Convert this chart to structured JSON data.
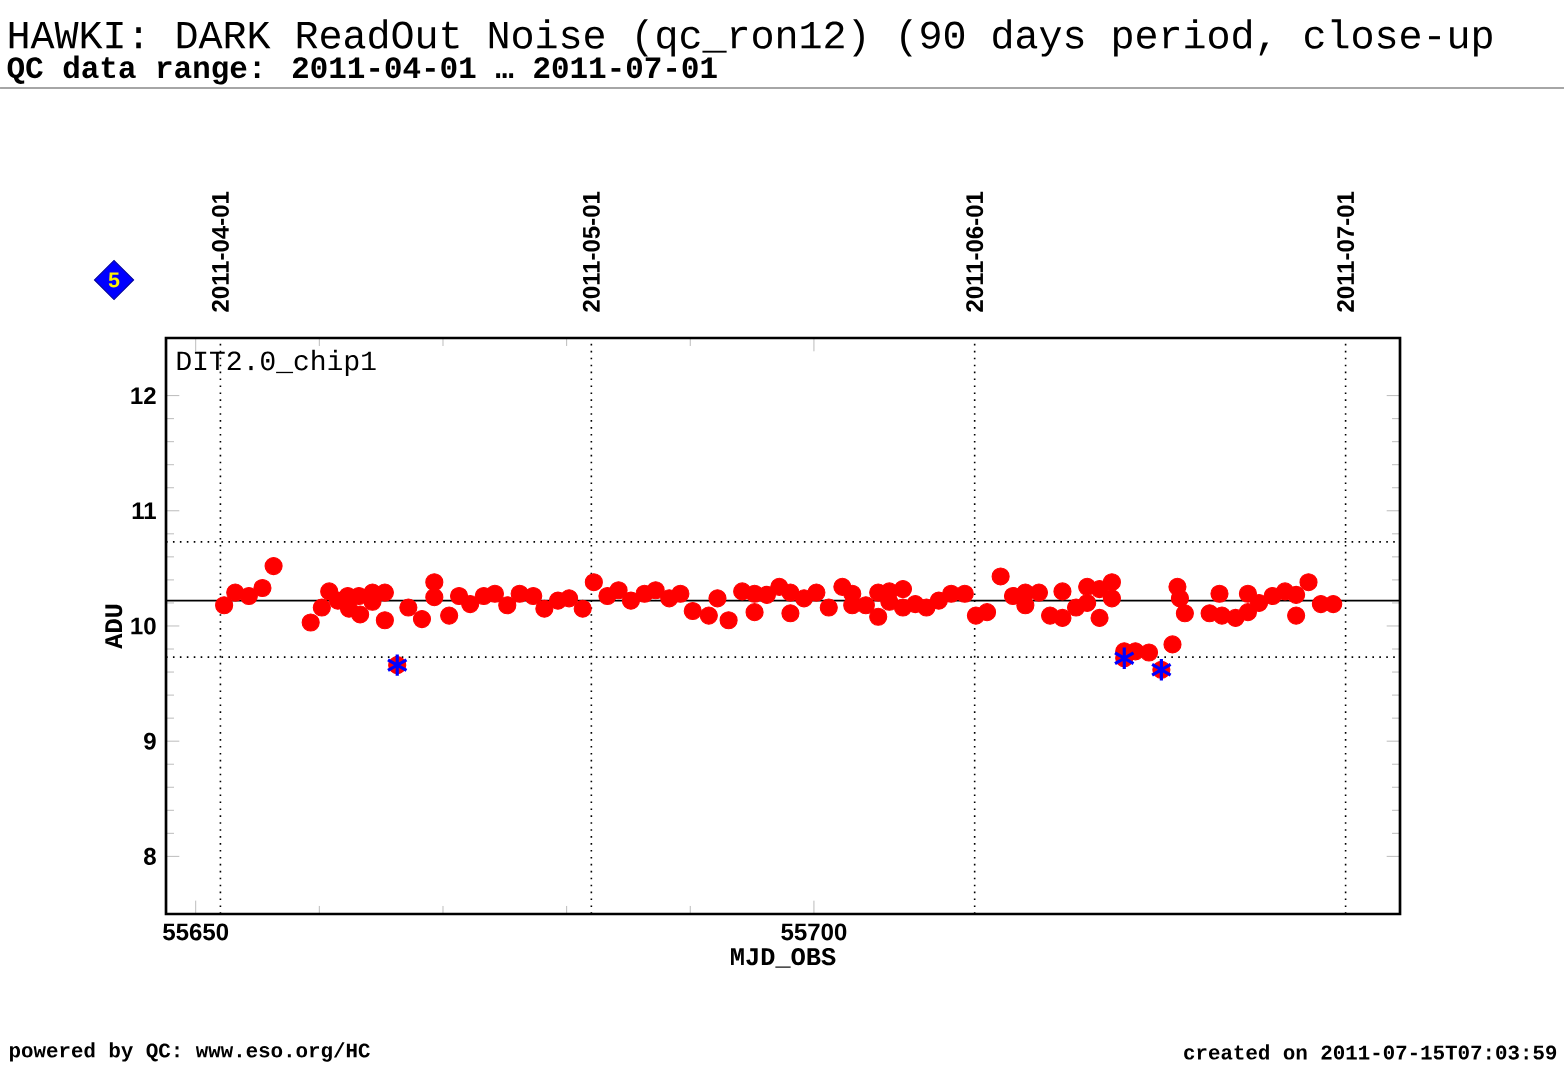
{
  "chart_data": {
    "type": "scatter",
    "title": "HAWKI: DARK ReadOut Noise (qc_ron12) (90 days period, close-up",
    "subtitle": "QC data range: 2011-04-01 … 2011-07-01",
    "xlabel": "MJD_OBS",
    "ylabel": "ADU",
    "xlim": [
      55647.6,
      55747.4
    ],
    "xticks": [
      55650,
      55700
    ],
    "ylim": [
      7.5,
      12.5
    ],
    "yticks": [
      8,
      9,
      10,
      11,
      12
    ],
    "x2lim": [
      "2011-03-27T14:24",
      "2011-07-05T09:36"
    ],
    "x2ticks": [
      "2011-04-01",
      "2011-05-01",
      "2011-06-01",
      "2011-07-01"
    ],
    "series": [
      {
        "color": "#ff0000",
        "marker": "circle",
        "x": [
          55652.3,
          55653.2,
          55654.3,
          55655.4,
          55656.3,
          55659.3,
          55660.2,
          55660.8,
          55661.5,
          55662.3,
          55662.4,
          55663.2,
          55663.3,
          55664.3,
          55664.3,
          55665.3,
          55665.3,
          55666.3,
          55667.2,
          55668.3,
          55669.3,
          55669.3,
          55670.5,
          55671.3,
          55672.2,
          55673.3,
          55674.2,
          55675.2,
          55676.2,
          55677.3,
          55678.2,
          55679.3,
          55680.2,
          55681.3,
          55682.2,
          55683.3,
          55684.2,
          55685.2,
          55686.3,
          55687.2,
          55688.3,
          55689.2,
          55690.2,
          55691.5,
          55692.2,
          55693.1,
          55694.2,
          55695.2,
          55695.2,
          55696.2,
          55697.2,
          55698.1,
          55698.1,
          55699.2,
          55700.2,
          55701.2,
          55702.3,
          55703.1,
          55703.1,
          55704.2,
          55705.2,
          55705.2,
          55706.1,
          55706.1,
          55707.2,
          55707.2,
          55708.2,
          55709.1,
          55710.1,
          55711.1,
          55712.2,
          55713.1,
          55714.0,
          55715.1,
          55716.1,
          55717.1,
          55717.1,
          55718.2,
          55719.1,
          55720.1,
          55720.1,
          55721.2,
          55722.1,
          55722.1,
          55723.1,
          55723.1,
          55724.1,
          55724.1,
          55725.1,
          55725.1,
          55726.0,
          55727.1,
          55728.1,
          55729.0,
          55729.4,
          55729.6,
          55730.0,
          55732.0,
          55732.8,
          55733.0,
          55734.1,
          55735.1,
          55735.1,
          55736.0,
          55737.1,
          55738.1,
          55739.0,
          55739.0,
          55740.0,
          55741.0,
          55742.0
        ],
        "values": [
          10.18,
          10.29,
          10.26,
          10.33,
          10.52,
          10.03,
          10.16,
          10.3,
          10.22,
          10.26,
          10.15,
          10.26,
          10.1,
          10.29,
          10.21,
          10.29,
          10.05,
          9.66,
          10.16,
          10.06,
          10.38,
          10.25,
          10.09,
          10.26,
          10.19,
          10.26,
          10.28,
          10.18,
          10.28,
          10.26,
          10.15,
          10.22,
          10.24,
          10.15,
          10.38,
          10.26,
          10.31,
          10.22,
          10.28,
          10.31,
          10.24,
          10.28,
          10.13,
          10.09,
          10.24,
          10.05,
          10.3,
          10.28,
          10.12,
          10.27,
          10.34,
          10.29,
          10.11,
          10.24,
          10.29,
          10.16,
          10.34,
          10.28,
          10.18,
          10.18,
          10.08,
          10.29,
          10.3,
          10.21,
          10.32,
          10.16,
          10.19,
          10.16,
          10.22,
          10.28,
          10.28,
          10.09,
          10.12,
          10.43,
          10.26,
          10.29,
          10.18,
          10.29,
          10.09,
          10.3,
          10.07,
          10.16,
          10.34,
          10.2,
          10.32,
          10.07,
          10.38,
          10.24,
          9.72,
          9.78,
          9.78,
          9.77,
          9.62,
          9.84,
          10.34,
          10.24,
          10.11,
          10.11,
          10.28,
          10.09,
          10.07,
          10.28,
          10.12,
          10.2,
          10.26,
          10.3,
          10.27,
          10.09,
          10.38,
          10.19,
          10.19
        ]
      },
      {
        "color": "#0000ff",
        "marker": "cross",
        "x": [
          55666.3,
          55725.1,
          55728.1
        ],
        "values": [
          9.66,
          9.72,
          9.62
        ]
      }
    ],
    "ref_lines": [
      {
        "axis": "y",
        "value": 10.22,
        "color": "#000000",
        "line_style": "solid"
      },
      {
        "axis": "y",
        "value": 10.73,
        "color": "#000000",
        "line_style": "dotted"
      },
      {
        "axis": "y",
        "value": 9.73,
        "color": "#000000",
        "line_style": "dotted"
      },
      {
        "axis": "x",
        "value": 55652,
        "color": "#000000",
        "line_style": "dotted"
      },
      {
        "axis": "x",
        "value": 55682,
        "color": "#000000",
        "line_style": "dotted"
      },
      {
        "axis": "x",
        "value": 55713,
        "color": "#000000",
        "line_style": "dotted"
      },
      {
        "axis": "x",
        "value": 55743,
        "color": "#000000",
        "line_style": "dotted"
      }
    ],
    "annotations": [
      "DIT2.0_chip1",
      "5",
      "powered by QC: www.eso.org/HC",
      "created on 2011-07-15T07:03:59"
    ]
  }
}
